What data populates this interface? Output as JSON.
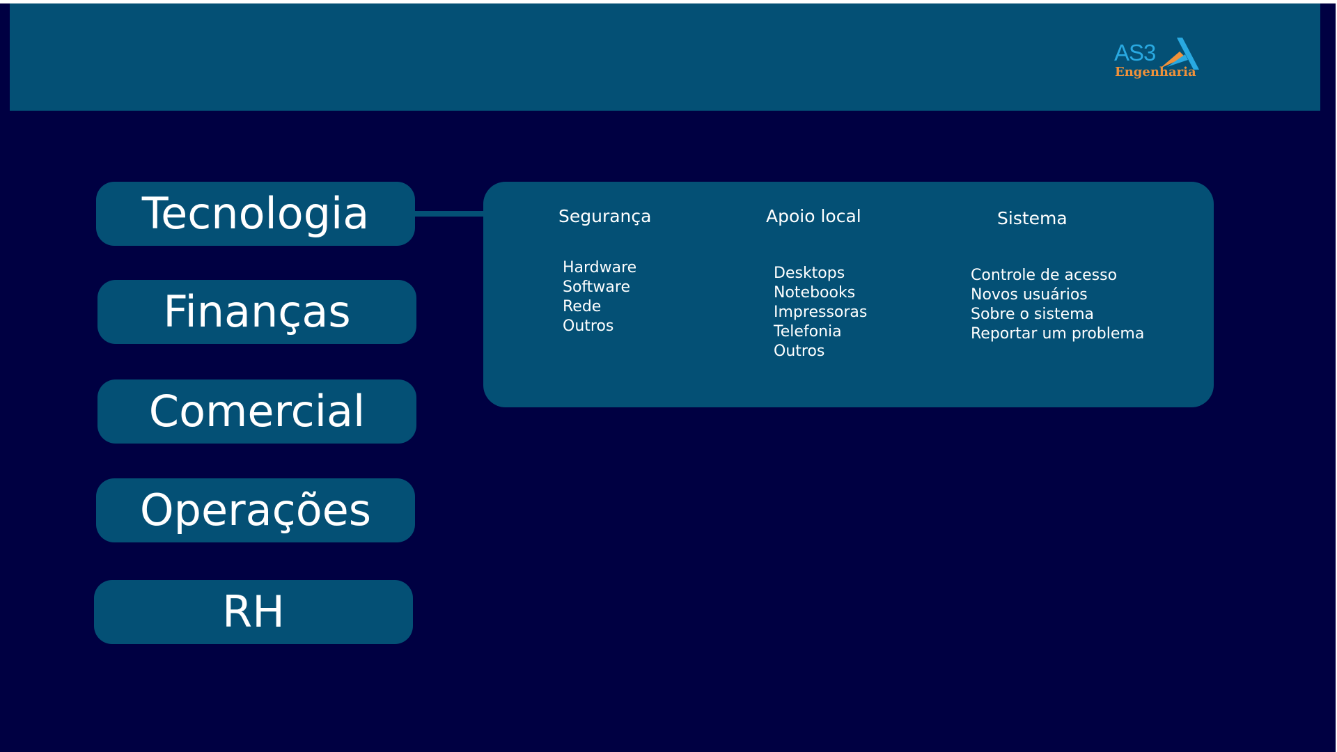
{
  "brand": {
    "logo_main": "AS3",
    "logo_sub": "Engenharia",
    "colors": {
      "header": "#045075",
      "background": "#000042",
      "logo_blue": "#29a9e1",
      "logo_orange": "#f0913a"
    }
  },
  "nav": {
    "items": [
      {
        "label": "Tecnologia",
        "active": true
      },
      {
        "label": "Finanças"
      },
      {
        "label": "Comercial"
      },
      {
        "label": "Operações"
      },
      {
        "label": "RH"
      }
    ]
  },
  "submenu": {
    "columns": [
      {
        "title": "Segurança",
        "items": [
          "Hardware",
          "Software",
          "Rede",
          "Outros"
        ]
      },
      {
        "title": "Apoio local",
        "items": [
          "Desktops",
          "Notebooks",
          "Impressoras",
          "Telefonia",
          "Outros"
        ]
      },
      {
        "title": "Sistema",
        "items": [
          "Controle de acesso",
          "Novos usuários",
          "Sobre o sistema",
          "Reportar um problema"
        ]
      }
    ]
  }
}
